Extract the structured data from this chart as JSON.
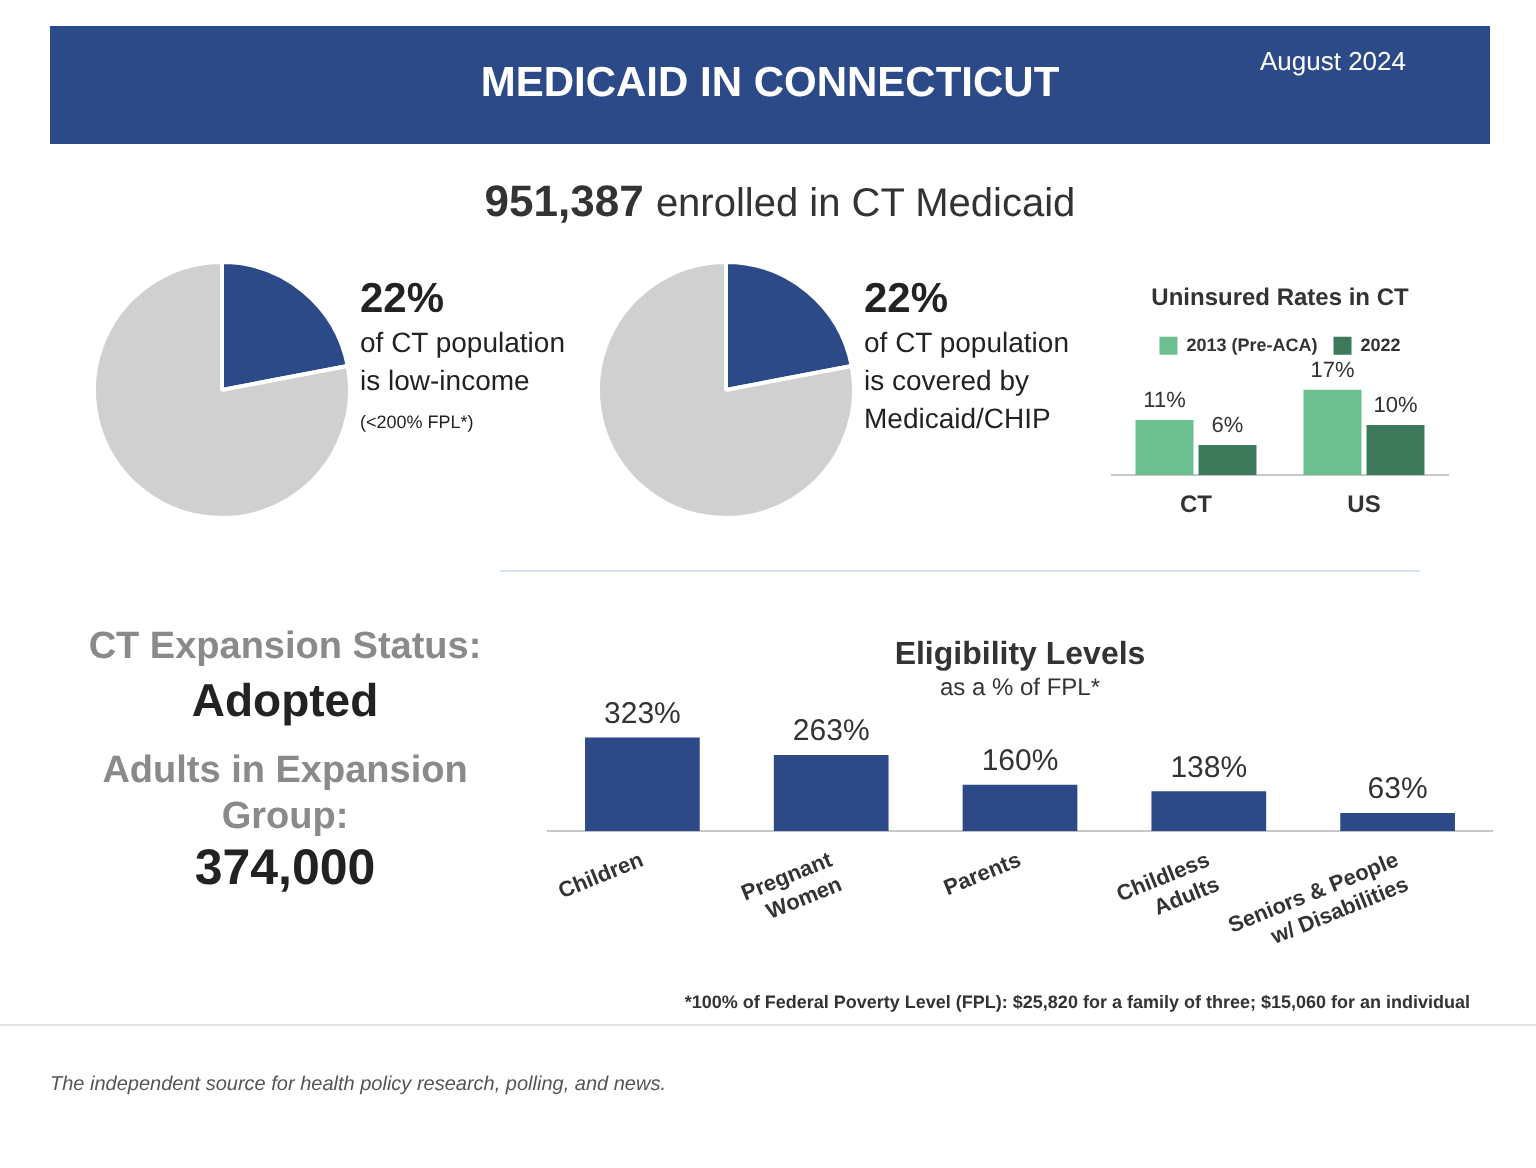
{
  "chart_data": [
    {
      "type": "other",
      "title": "MEDICAID IN CONNECTICUT",
      "subtitle": "August 2024",
      "annotations": [
        "951,387",
        "enrolled in CT Medicaid"
      ]
    },
    {
      "type": "pie",
      "categories": [
        null,
        null
      ],
      "values": [
        22,
        78
      ],
      "colors": [
        "#2c4a87",
        "#d0d0d0"
      ],
      "value_labels": [
        "22%",
        null
      ],
      "annotations": [
        "of CT population is low-income",
        "(<200% FPL*)"
      ]
    },
    {
      "type": "pie",
      "categories": [
        null,
        null
      ],
      "values": [
        22,
        78
      ],
      "colors": [
        "#2c4a87",
        "#d0d0d0"
      ],
      "value_labels": [
        "22%",
        null
      ],
      "annotations": [
        "of CT population is covered by Medicaid/CHIP"
      ]
    },
    {
      "type": "bar",
      "title": "Uninsured Rates in CT",
      "categories": [
        "CT",
        "US"
      ],
      "legend": "top",
      "tick_labels": "x",
      "series": [
        {
          "name": "2013 (Pre-ACA)",
          "color": "#6cc08f",
          "values": [
            11,
            17
          ],
          "value_labels": [
            "11%",
            "17%"
          ]
        },
        {
          "name": "2022",
          "color": "#3d7a5c",
          "values": [
            6,
            10
          ],
          "value_labels": [
            "6%",
            "10%"
          ]
        }
      ]
    },
    {
      "type": "other",
      "title": "CT Expansion Status:",
      "annotations": [
        "Adopted",
        "Adults in Expansion Group:",
        "374,000"
      ]
    },
    {
      "type": "bar",
      "title": "Eligibility Levels",
      "subtitle": "as a % of FPL*",
      "categories": [
        "Children",
        "Pregnant Women",
        "Parents",
        "Childless Adults",
        "Seniors & People w/ Disabilities"
      ],
      "values": [
        323,
        263,
        160,
        138,
        63
      ],
      "color": "#2c4a87",
      "value_labels": [
        "323%",
        "263%",
        "160%",
        "138%",
        "63%"
      ],
      "tick_labels": "x",
      "annotations": [
        "*100% of Federal Poverty Level (FPL): $25,820 for a family of three; $15,060 for an individual"
      ]
    },
    {
      "type": "other",
      "annotations": [
        "The independent source for health policy research, polling, and news."
      ]
    }
  ]
}
